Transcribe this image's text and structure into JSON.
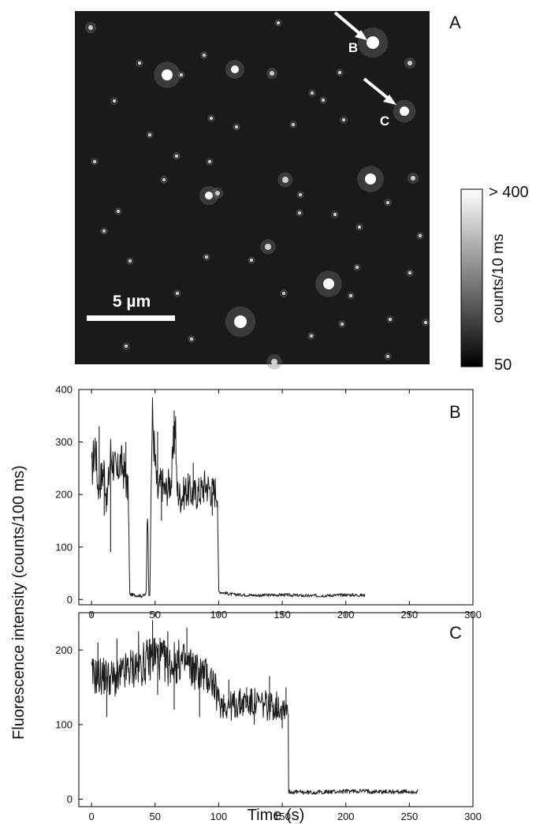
{
  "panel_a": {
    "label": "A",
    "scale_bar": "5 µm",
    "colorbar": {
      "top": "> 400",
      "bottom": "50",
      "label": "counts/10 ms"
    },
    "markers": [
      "B",
      "C"
    ],
    "colors": {
      "background": "#1a1a1a",
      "spot": "#ffffff",
      "arrow": "#ffffff"
    }
  },
  "shared_ylabel": "Fluorescence intensity (counts/100 ms)",
  "shared_xlabel": "Time (s)",
  "chart_data": [
    {
      "type": "line",
      "panel_label": "B",
      "title": "",
      "xlabel": "",
      "ylabel": "",
      "xlim": [
        -10,
        300
      ],
      "ylim": [
        -10,
        400
      ],
      "xticks": [
        0,
        50,
        100,
        150,
        200,
        250,
        300
      ],
      "yticks": [
        0,
        100,
        200,
        300,
        400
      ],
      "grid": false,
      "series": [
        {
          "points": [
            [
              0,
              240
            ],
            [
              3,
              300
            ],
            [
              5,
              215
            ],
            [
              8,
              235
            ],
            [
              10,
              250
            ],
            [
              12,
              180
            ],
            [
              15,
              280
            ],
            [
              18,
              255
            ],
            [
              20,
              230
            ],
            [
              22,
              265
            ],
            [
              25,
              250
            ],
            [
              27,
              230
            ],
            [
              29,
              200
            ],
            [
              30,
              10
            ],
            [
              35,
              8
            ],
            [
              40,
              7
            ],
            [
              43,
              10
            ],
            [
              44,
              200
            ],
            [
              45,
              10
            ],
            [
              46,
              10
            ],
            [
              47,
              250
            ],
            [
              48,
              350
            ],
            [
              50,
              260
            ],
            [
              52,
              200
            ],
            [
              55,
              225
            ],
            [
              58,
              205
            ],
            [
              60,
              215
            ],
            [
              63,
              230
            ],
            [
              66,
              350
            ],
            [
              67,
              210
            ],
            [
              70,
              195
            ],
            [
              75,
              210
            ],
            [
              80,
              200
            ],
            [
              85,
              205
            ],
            [
              90,
              220
            ],
            [
              95,
              205
            ],
            [
              99,
              210
            ],
            [
              100,
              15
            ],
            [
              110,
              10
            ],
            [
              130,
              8
            ],
            [
              150,
              9
            ],
            [
              170,
              7
            ],
            [
              190,
              8
            ],
            [
              200,
              9
            ],
            [
              215,
              8
            ]
          ],
          "spikes": [
            [
              6,
              330
            ],
            [
              10,
              160
            ],
            [
              15,
              90
            ],
            [
              27,
              300
            ],
            [
              48,
              360
            ],
            [
              52,
              320
            ],
            [
              55,
              150
            ],
            [
              65,
              360
            ],
            [
              80,
              260
            ],
            [
              95,
              160
            ]
          ]
        }
      ]
    },
    {
      "type": "line",
      "panel_label": "C",
      "title": "",
      "xlabel": "Time (s)",
      "ylabel": "",
      "xlim": [
        -10,
        300
      ],
      "ylim": [
        -10,
        250
      ],
      "xticks": [
        0,
        50,
        100,
        150,
        200,
        250,
        300
      ],
      "yticks": [
        0,
        100,
        200
      ],
      "grid": false,
      "series": [
        {
          "points": [
            [
              0,
              165
            ],
            [
              10,
              165
            ],
            [
              20,
              160
            ],
            [
              30,
              175
            ],
            [
              40,
              180
            ],
            [
              50,
              195
            ],
            [
              60,
              180
            ],
            [
              70,
              185
            ],
            [
              80,
              175
            ],
            [
              90,
              165
            ],
            [
              95,
              160
            ],
            [
              100,
              130
            ],
            [
              110,
              125
            ],
            [
              120,
              130
            ],
            [
              130,
              128
            ],
            [
              140,
              125
            ],
            [
              150,
              125
            ],
            [
              155,
              125
            ],
            [
              155,
              10
            ],
            [
              170,
              9
            ],
            [
              190,
              10
            ],
            [
              210,
              11
            ],
            [
              230,
              10
            ],
            [
              250,
              10
            ],
            [
              257,
              10
            ]
          ],
          "spikes": [
            [
              5,
              210
            ],
            [
              12,
              110
            ],
            [
              20,
              215
            ],
            [
              37,
              225
            ],
            [
              48,
              240
            ],
            [
              52,
              140
            ],
            [
              60,
              225
            ],
            [
              65,
              120
            ],
            [
              75,
              230
            ],
            [
              85,
              110
            ],
            [
              95,
              145
            ],
            [
              108,
              160
            ],
            [
              122,
              150
            ],
            [
              128,
              100
            ],
            [
              140,
              165
            ],
            [
              150,
              95
            ],
            [
              153,
              150
            ]
          ]
        }
      ]
    }
  ]
}
